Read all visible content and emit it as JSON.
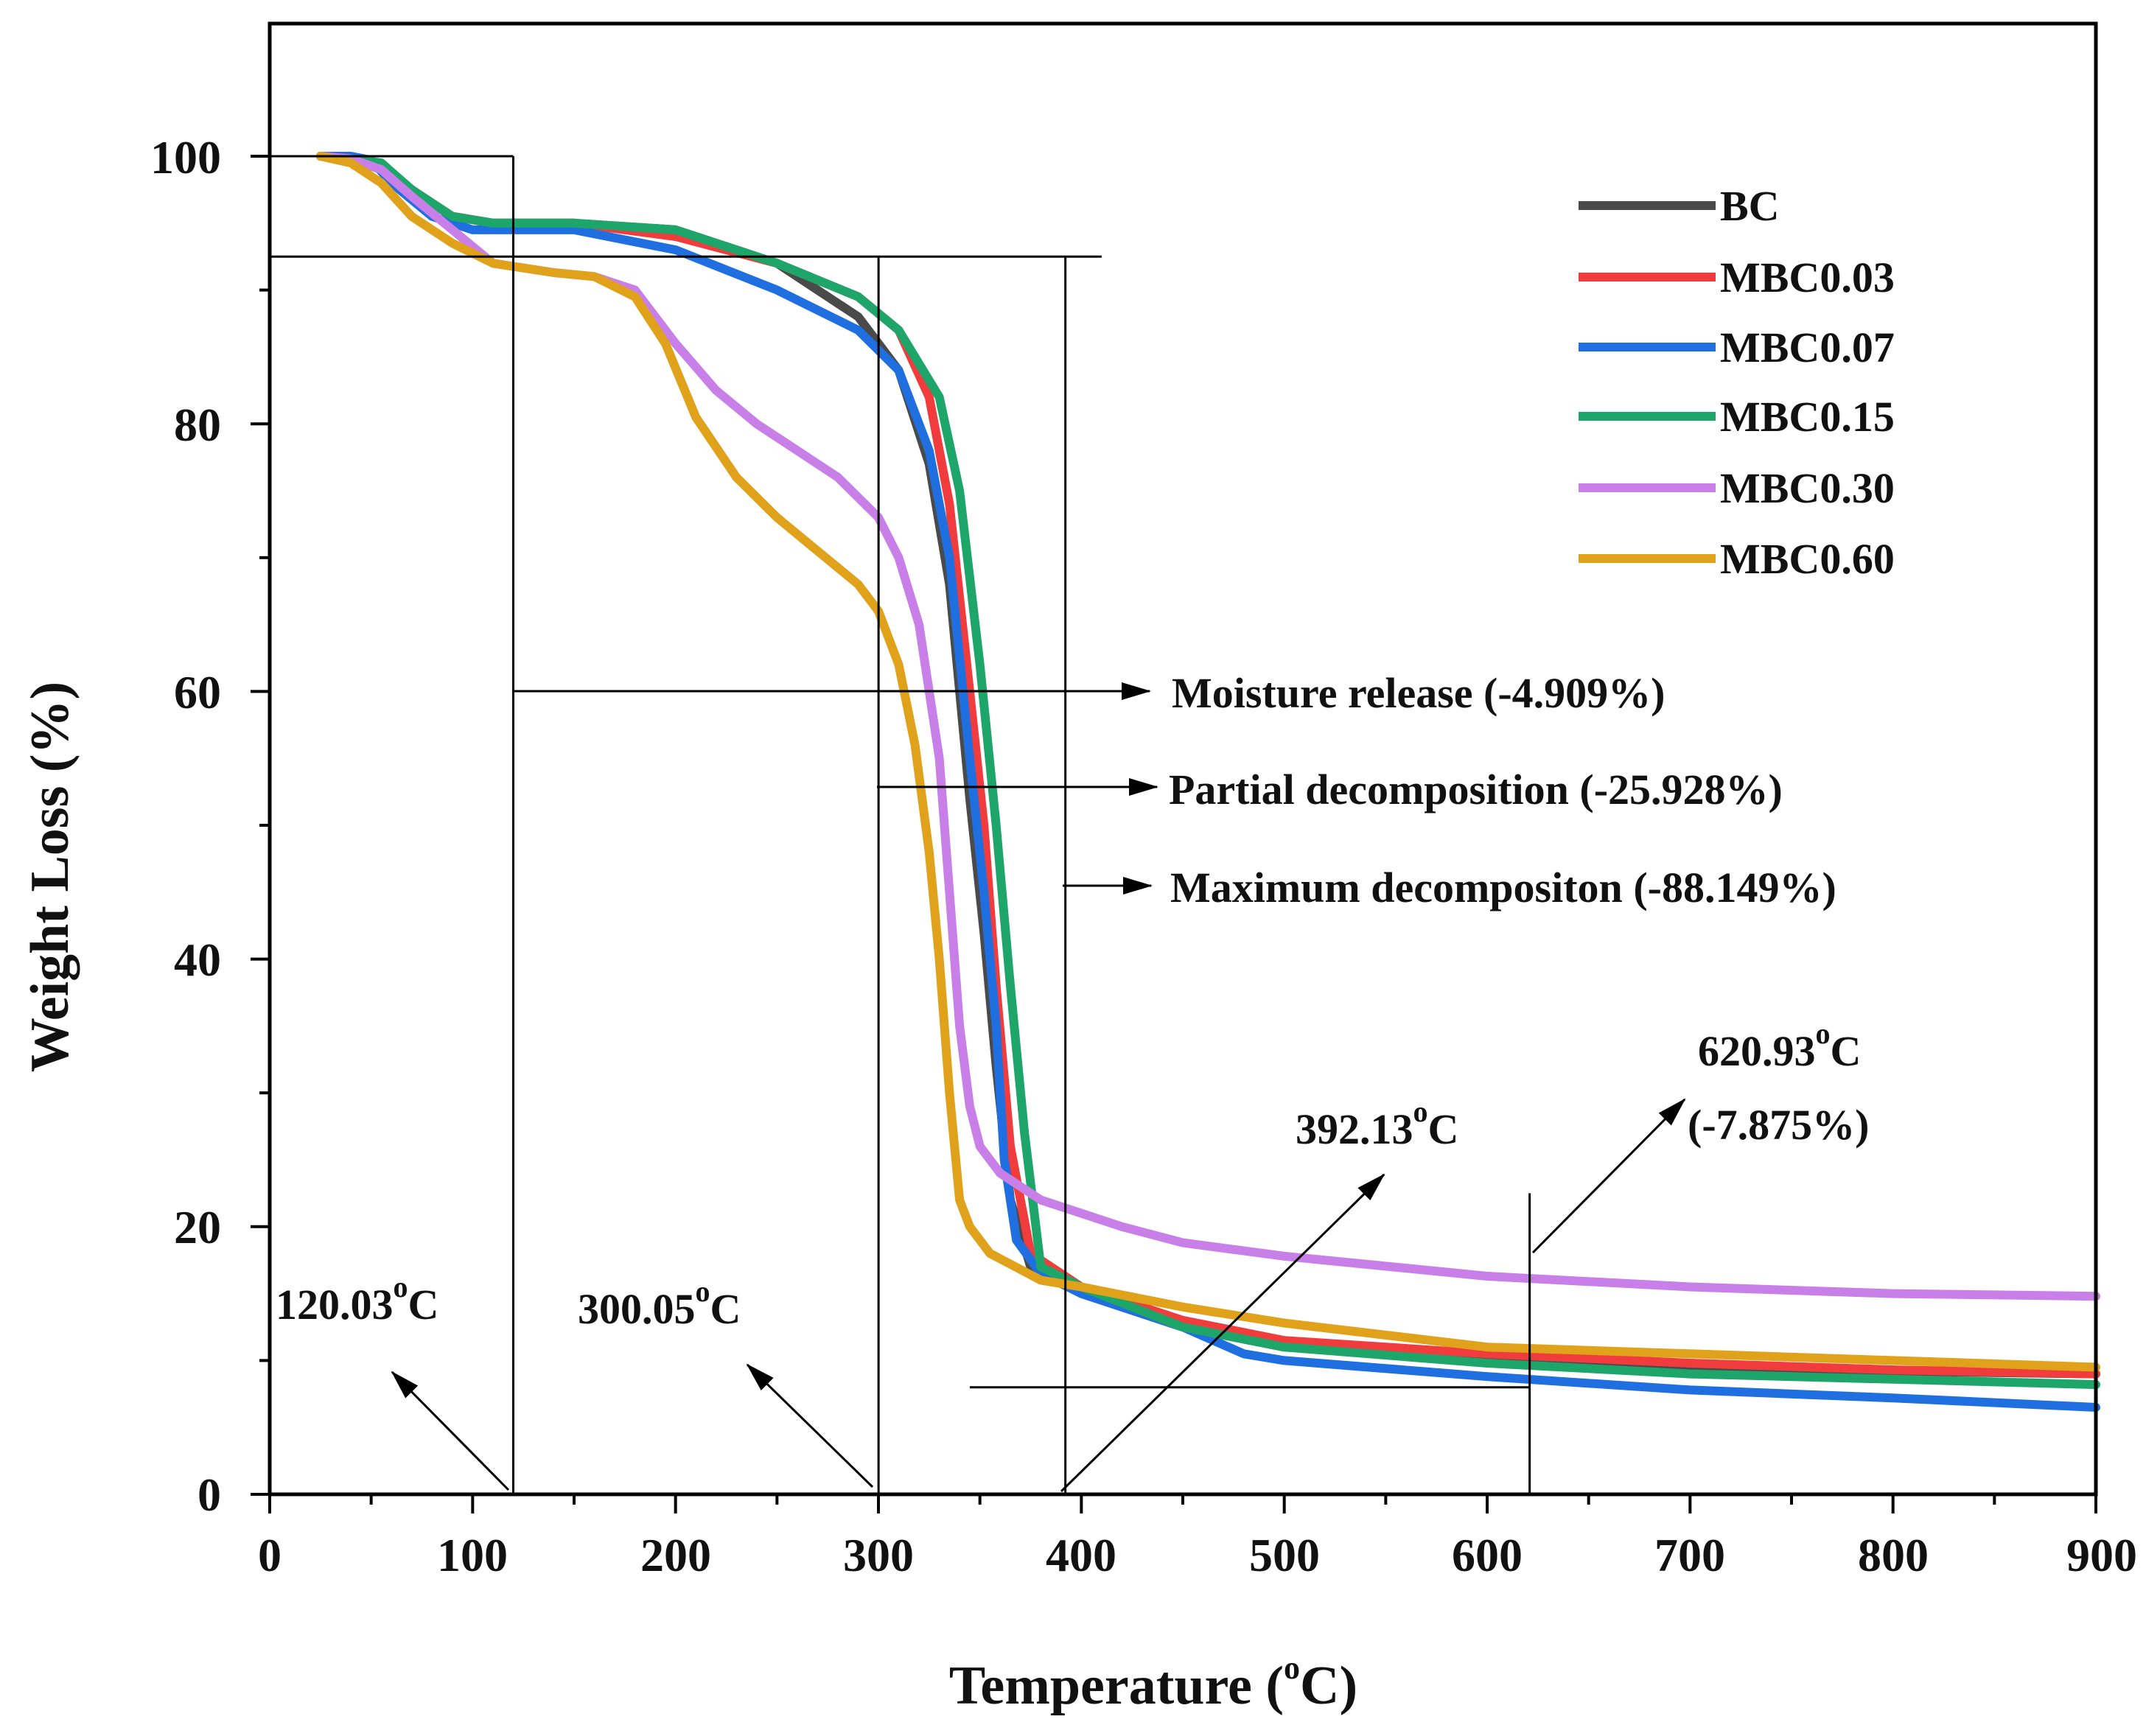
{
  "chart_data": {
    "type": "line",
    "xlabel": "Temperature",
    "xlabel_unit": "(oC)",
    "ylabel": "Weight Loss (%)",
    "xlim": [
      0,
      900
    ],
    "ylim": [
      0,
      110
    ],
    "xticks": [
      "0",
      "100",
      "200",
      "300",
      "400",
      "500",
      "600",
      "700",
      "800",
      "900"
    ],
    "yticks": [
      "0",
      "20",
      "40",
      "60",
      "80",
      "100"
    ],
    "xtick_values": [
      0,
      100,
      200,
      300,
      400,
      500,
      600,
      700,
      800,
      900
    ],
    "ytick_values": [
      0,
      20,
      40,
      60,
      80,
      100
    ],
    "legend_position": "top-right",
    "series": [
      {
        "name": "BC",
        "color": "#4a4a4a",
        "x": [
          25,
          40,
          55,
          70,
          90,
          110,
          150,
          200,
          250,
          290,
          310,
          325,
          335,
          345,
          352,
          358,
          365,
          375,
          400,
          450,
          500,
          600,
          700,
          800,
          900
        ],
        "y": [
          100,
          99.8,
          99,
          97.5,
          95.5,
          95,
          95,
          94.5,
          92,
          88,
          84,
          77,
          68,
          52,
          42,
          32,
          22,
          17,
          15,
          12.5,
          11,
          10,
          9.5,
          9.2,
          9
        ]
      },
      {
        "name": "MBC0.03",
        "color": "#f03c3c",
        "x": [
          25,
          40,
          55,
          70,
          90,
          110,
          150,
          200,
          250,
          290,
          310,
          325,
          335,
          345,
          352,
          358,
          365,
          375,
          400,
          450,
          500,
          600,
          700,
          800,
          900
        ],
        "y": [
          100,
          99.8,
          99,
          97.5,
          95.5,
          95,
          95,
          94,
          92,
          89.5,
          87,
          82,
          74,
          60,
          50,
          38,
          26,
          18,
          15.5,
          13,
          11.5,
          10.5,
          9.8,
          9.3,
          9
        ]
      },
      {
        "name": "MBC0.07",
        "color": "#1f6fe0",
        "x": [
          25,
          40,
          50,
          60,
          80,
          100,
          150,
          200,
          250,
          290,
          310,
          325,
          335,
          345,
          352,
          358,
          362,
          368,
          380,
          400,
          450,
          480,
          500,
          600,
          700,
          800,
          900
        ],
        "y": [
          100,
          100,
          99.7,
          98,
          95.5,
          94.5,
          94.5,
          93,
          90,
          87,
          84,
          78,
          70,
          55,
          45,
          35,
          25,
          19,
          16.5,
          15,
          12.5,
          10.5,
          10,
          8.8,
          7.8,
          7.2,
          6.5
        ]
      },
      {
        "name": "MBC0.15",
        "color": "#1ea56a",
        "x": [
          25,
          40,
          55,
          70,
          90,
          110,
          150,
          200,
          250,
          290,
          310,
          330,
          340,
          350,
          358,
          365,
          372,
          380,
          400,
          450,
          500,
          600,
          700,
          800,
          900
        ],
        "y": [
          100,
          99.8,
          99.5,
          97.5,
          95.5,
          95,
          95,
          94.5,
          92,
          89.5,
          87,
          82,
          75,
          62,
          50,
          38,
          27,
          17,
          15.5,
          12.5,
          11,
          9.8,
          9,
          8.6,
          8.2
        ]
      },
      {
        "name": "MBC0.30",
        "color": "#c87fe8",
        "x": [
          25,
          40,
          55,
          70,
          90,
          110,
          140,
          160,
          180,
          200,
          220,
          240,
          260,
          280,
          300,
          310,
          320,
          330,
          335,
          340,
          345,
          350,
          360,
          380,
          420,
          450,
          500,
          600,
          700,
          800,
          900
        ],
        "y": [
          100,
          99.8,
          99,
          97,
          94.5,
          92,
          91.3,
          91,
          90,
          86,
          82.5,
          80,
          78,
          76,
          73,
          70,
          65,
          55,
          45,
          35,
          29,
          26,
          24,
          22,
          20,
          18.8,
          17.8,
          16.3,
          15.5,
          15,
          14.8
        ]
      },
      {
        "name": "MBC0.60",
        "color": "#e0a21a",
        "x": [
          25,
          40,
          55,
          70,
          90,
          110,
          140,
          160,
          180,
          195,
          210,
          230,
          250,
          270,
          290,
          300,
          310,
          318,
          325,
          330,
          335,
          340,
          345,
          355,
          380,
          400,
          450,
          500,
          600,
          700,
          800,
          900
        ],
        "y": [
          100,
          99.5,
          98,
          95.5,
          93.5,
          92,
          91.3,
          91,
          89.5,
          86,
          80.5,
          76,
          73,
          70.5,
          68,
          66,
          62,
          56,
          48,
          40,
          30,
          22,
          20,
          18,
          16,
          15.5,
          14,
          12.8,
          11,
          10.5,
          10,
          9.5
        ]
      }
    ],
    "guides": {
      "hlines": [
        {
          "y": 100,
          "x0": 0,
          "x1": 120.03
        },
        {
          "y": 92.5,
          "x0": 0,
          "x1": 410
        },
        {
          "y": 8,
          "x0": 345,
          "x1": 620.93
        }
      ],
      "vlines": [
        {
          "x": 120.03,
          "y0": 0,
          "y1": 100
        },
        {
          "x": 300.05,
          "y0": 0,
          "y1": 92.5
        },
        {
          "x": 392.13,
          "y0": 0,
          "y1": 92.5
        },
        {
          "x": 620.93,
          "y0": 0,
          "y1": 22.5
        }
      ]
    },
    "annotations": {
      "temp_120": {
        "base": "120.03",
        "sup": "o",
        "tail": "C",
        "value": 120.03
      },
      "temp_300": {
        "base": "300.05",
        "sup": "o",
        "tail": "C",
        "value": 300.05
      },
      "temp_392": {
        "base": "392.13",
        "sup": "o",
        "tail": "C",
        "value": 392.13
      },
      "temp_620": {
        "base": "620.93",
        "sup": "o",
        "tail": "C",
        "value": 620.93
      },
      "loss_620": "(-7.875%)",
      "moisture": "Moisture release (-4.909%)",
      "partial": "Partial decomposition (-25.928%)",
      "maximum": "Maximum decompositon (-88.149%)"
    }
  }
}
